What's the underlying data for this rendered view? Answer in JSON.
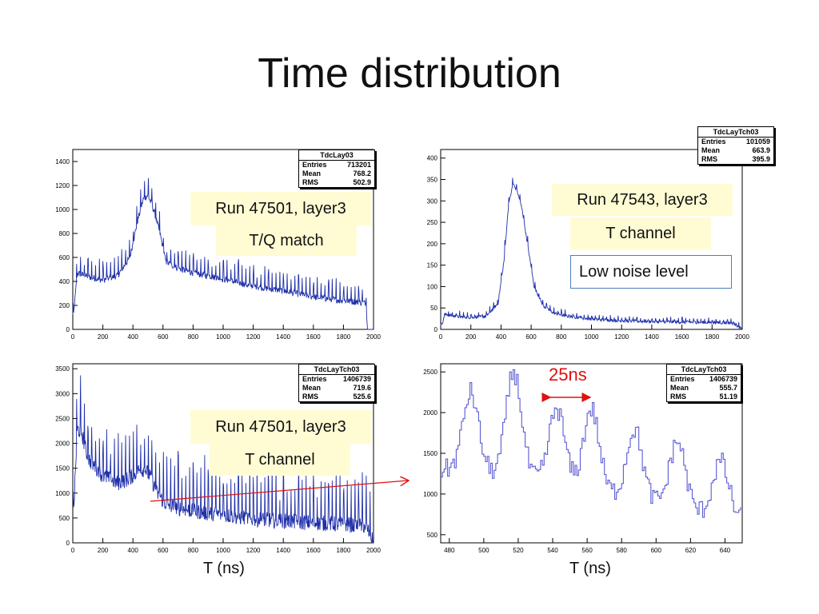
{
  "slide": {
    "title": "Time distribution"
  },
  "chart_data": [
    {
      "type": "line",
      "panel": "top-left",
      "series_kind": "histogram",
      "xlim": [
        0,
        2000
      ],
      "ylim": [
        0,
        1500
      ],
      "x_ticks": [
        "0",
        "200",
        "400",
        "600",
        "800",
        "1000",
        "1200",
        "1400",
        "1600",
        "1800",
        "2000"
      ],
      "y_ticks": [
        "0",
        "200",
        "400",
        "600",
        "800",
        "1000",
        "1200",
        "1400"
      ],
      "x_tick_values": [
        0,
        200,
        400,
        600,
        800,
        1000,
        1200,
        1400,
        1600,
        1800,
        2000
      ],
      "y_tick_values": [
        0,
        200,
        400,
        600,
        800,
        1000,
        1200,
        1400
      ],
      "stats": {
        "name": "TdcLay03",
        "entries": "713201",
        "mean": "768.2",
        "rms": "502.9"
      },
      "envelope": {
        "x": [
          0,
          30,
          100,
          200,
          300,
          380,
          430,
          470,
          500,
          540,
          580,
          620,
          700,
          800,
          1000,
          1200,
          1400,
          1600,
          1800,
          1950,
          1960,
          2000
        ],
        "y": [
          50,
          470,
          440,
          410,
          450,
          600,
          900,
          1090,
          1120,
          990,
          800,
          560,
          510,
          470,
          420,
          360,
          320,
          270,
          240,
          220,
          0,
          0
        ]
      },
      "spike_period": 25,
      "spike_height": 150,
      "notes": [
        "Run 47501, layer3",
        "T/Q match"
      ]
    },
    {
      "type": "line",
      "panel": "top-right",
      "series_kind": "histogram",
      "xlim": [
        0,
        2000
      ],
      "ylim": [
        0,
        420
      ],
      "x_ticks": [
        "0",
        "200",
        "400",
        "600",
        "800",
        "1000",
        "1200",
        "1400",
        "1600",
        "1800",
        "2000"
      ],
      "y_ticks": [
        "0",
        "50",
        "100",
        "150",
        "200",
        "250",
        "300",
        "350",
        "400"
      ],
      "x_tick_values": [
        0,
        200,
        400,
        600,
        800,
        1000,
        1200,
        1400,
        1600,
        1800,
        2000
      ],
      "y_tick_values": [
        0,
        50,
        100,
        150,
        200,
        250,
        300,
        350,
        400
      ],
      "stats": {
        "name": "TdcLayTch03",
        "entries": "101059",
        "mean": "663.9",
        "rms": "395.9"
      },
      "envelope": {
        "x": [
          0,
          30,
          100,
          200,
          300,
          380,
          420,
          450,
          480,
          510,
          540,
          580,
          620,
          680,
          750,
          850,
          1000,
          1200,
          1400,
          1600,
          1800,
          1940,
          2000
        ],
        "y": [
          5,
          35,
          30,
          28,
          30,
          60,
          160,
          290,
          340,
          320,
          280,
          190,
          100,
          55,
          38,
          30,
          24,
          20,
          18,
          17,
          16,
          15,
          0
        ]
      },
      "spike_period": 25,
      "spike_height": 20,
      "notes": [
        "Run 47543, layer3",
        "T channel",
        "Low noise level"
      ]
    },
    {
      "type": "line",
      "panel": "bottom-left",
      "series_kind": "histogram",
      "xlim": [
        0,
        2000
      ],
      "ylim": [
        0,
        3600
      ],
      "x_ticks": [
        "0",
        "200",
        "400",
        "600",
        "800",
        "1000",
        "1200",
        "1400",
        "1600",
        "1800",
        "2000"
      ],
      "y_ticks": [
        "0",
        "500",
        "1000",
        "1500",
        "2000",
        "2500",
        "3000",
        "3500"
      ],
      "x_tick_values": [
        0,
        200,
        400,
        600,
        800,
        1000,
        1200,
        1400,
        1600,
        1800,
        2000
      ],
      "y_tick_values": [
        0,
        500,
        1000,
        1500,
        2000,
        2500,
        3000,
        3500
      ],
      "stats": {
        "name": "TdcLayTch03",
        "entries": "1406739",
        "mean": "719.6",
        "rms": "525.6"
      },
      "envelope": {
        "x": [
          0,
          30,
          60,
          100,
          200,
          300,
          380,
          430,
          480,
          520,
          560,
          620,
          700,
          800,
          1000,
          1200,
          1400,
          1600,
          1800,
          1950,
          2000
        ],
        "y": [
          200,
          2300,
          2200,
          1700,
          1350,
          1200,
          1300,
          1450,
          1480,
          1300,
          1000,
          780,
          700,
          640,
          560,
          480,
          440,
          400,
          370,
          340,
          0
        ]
      },
      "spike_period": 25,
      "spike_height": 900,
      "notes": [
        "Run 47501, layer3",
        "T channel"
      ]
    },
    {
      "type": "line",
      "panel": "bottom-right",
      "series_kind": "step histogram (zoom)",
      "xlim": [
        475,
        650
      ],
      "ylim": [
        400,
        2600
      ],
      "x_ticks": [
        "480",
        "500",
        "520",
        "540",
        "560",
        "580",
        "600",
        "620",
        "640"
      ],
      "y_ticks": [
        "500",
        "1000",
        "1500",
        "2000",
        "2500"
      ],
      "x_tick_values": [
        480,
        500,
        520,
        540,
        560,
        580,
        600,
        620,
        640
      ],
      "y_tick_values": [
        500,
        1000,
        1500,
        2000,
        2500
      ],
      "stats": {
        "name": "TdcLayTch03",
        "entries": "1406739",
        "mean": "555.7",
        "rms": "51.19"
      },
      "peaks": {
        "x": [
          492,
          517,
          542,
          562,
          587,
          612,
          637
        ],
        "height": [
          2250,
          2500,
          2050,
          2050,
          1800,
          1650,
          1400
        ],
        "baseline": [
          1300,
          1200,
          1150,
          1050,
          950,
          850,
          700
        ]
      },
      "annotation": "25ns",
      "annotation_color": "#e01010"
    }
  ],
  "captions": {
    "x_left": "T (ns)",
    "x_right": "T (ns)"
  },
  "labels": {
    "entries": "Entries",
    "mean": "Mean",
    "rms": "RMS"
  },
  "colors": {
    "trace": "#1e2ea8",
    "step_trace": "#5b5bd6",
    "note_bg": "#fffcd4",
    "note_border": "#4a7ebb",
    "arrow": "#e01010"
  }
}
